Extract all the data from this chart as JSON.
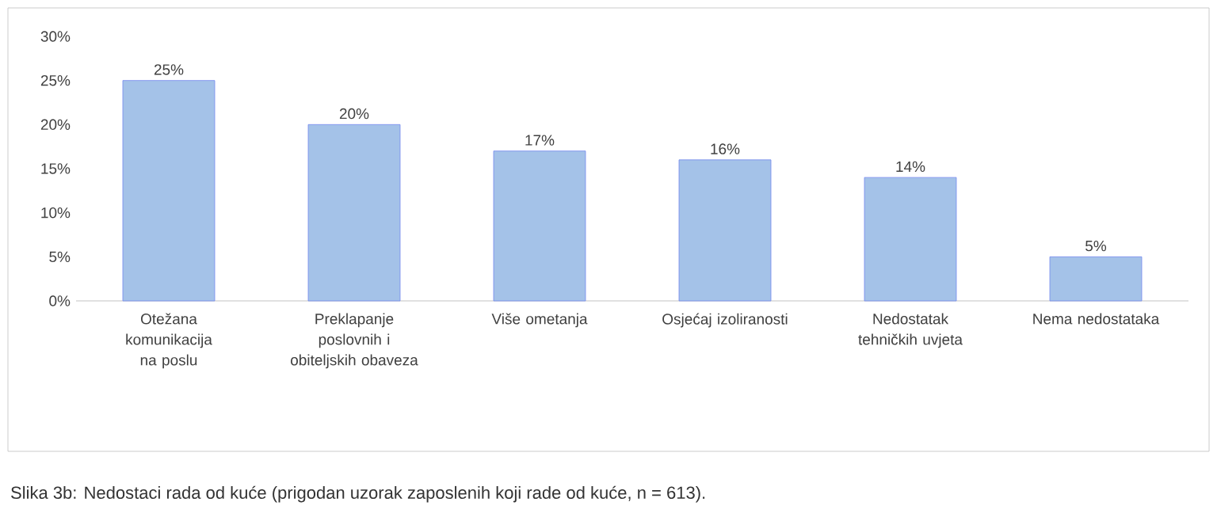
{
  "chart_data": {
    "type": "bar",
    "categories": [
      "Otežana komunikacija na poslu",
      "Preklapanje poslovnih i obiteljskih obaveza",
      "Više ometanja",
      "Osjećaj izoliranosti",
      "Nedostatak tehničkih uvjeta",
      "Nema nedostataka"
    ],
    "values": [
      25,
      20,
      17,
      16,
      14,
      5
    ],
    "value_labels": [
      "25%",
      "20%",
      "17%",
      "16%",
      "14%",
      "5%"
    ],
    "color": "#a4c2e8",
    "ylim": [
      0,
      30
    ],
    "yticks": [
      {
        "value": 0,
        "label": "0%"
      },
      {
        "value": 5,
        "label": "5%"
      },
      {
        "value": 10,
        "label": "10%"
      },
      {
        "value": 15,
        "label": "15%"
      },
      {
        "value": 20,
        "label": "20%"
      },
      {
        "value": 25,
        "label": "25%"
      },
      {
        "value": 30,
        "label": "30%"
      }
    ],
    "annotations": [
      "Slika 3b: Nedostaci rada od kuće (prigodan uzorak zaposlenih koji rade od kuće, n = 613)."
    ]
  }
}
